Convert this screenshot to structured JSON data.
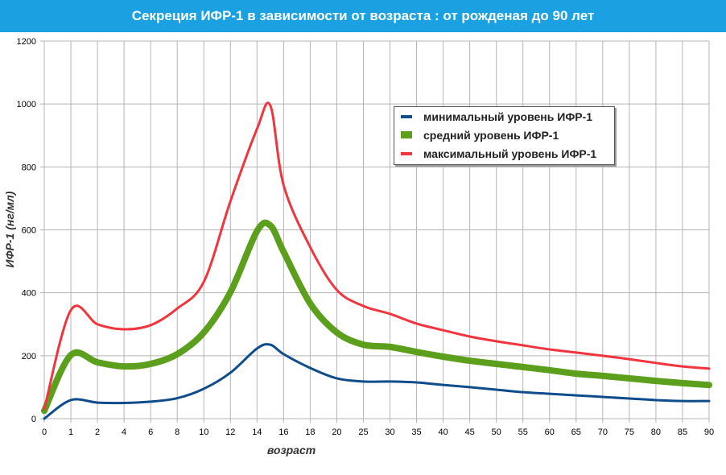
{
  "chart_data": {
    "type": "line",
    "title": "Секреция ИФР-1 в зависимости от возраста : от рожденая до 90 лет",
    "xlabel": "возраст",
    "ylabel": "ИФР-1 (нг/мл)",
    "categories": [
      "0",
      "1",
      "2",
      "4",
      "6",
      "8",
      "10",
      "12",
      "14",
      "16",
      "18",
      "20",
      "25",
      "30",
      "35",
      "40",
      "45",
      "50",
      "55",
      "60",
      "65",
      "70",
      "75",
      "80",
      "85",
      "90"
    ],
    "yticks": [
      "0",
      "200",
      "400",
      "600",
      "800",
      "1000",
      "1200"
    ],
    "ylim": [
      0,
      1200
    ],
    "grid": true,
    "legend_position": "top-right",
    "series": [
      {
        "name": "минимальный уровень ИФР-1",
        "color": "#0e4c8c",
        "width": 3,
        "points": [
          [
            0,
            0
          ],
          [
            1,
            59
          ],
          [
            2,
            51
          ],
          [
            4,
            50
          ],
          [
            6,
            54
          ],
          [
            8,
            65
          ],
          [
            10,
            95
          ],
          [
            12,
            146
          ],
          [
            14,
            223
          ],
          [
            15,
            235
          ],
          [
            16,
            205
          ],
          [
            18,
            161
          ],
          [
            20,
            128
          ],
          [
            25,
            118
          ],
          [
            30,
            118
          ],
          [
            35,
            115
          ],
          [
            40,
            107
          ],
          [
            45,
            100
          ],
          [
            50,
            92
          ],
          [
            55,
            84
          ],
          [
            60,
            79
          ],
          [
            65,
            74
          ],
          [
            70,
            69
          ],
          [
            75,
            64
          ],
          [
            80,
            59
          ],
          [
            85,
            56
          ],
          [
            90,
            56
          ]
        ]
      },
      {
        "name": "средний уровень ИФР-1",
        "color": "#5b9f1c",
        "width": 8,
        "points": [
          [
            0,
            25
          ],
          [
            1,
            202
          ],
          [
            2,
            179
          ],
          [
            4,
            166
          ],
          [
            6,
            174
          ],
          [
            8,
            205
          ],
          [
            10,
            274
          ],
          [
            12,
            402
          ],
          [
            14,
            596
          ],
          [
            15,
            614
          ],
          [
            16,
            530
          ],
          [
            18,
            366
          ],
          [
            20,
            274
          ],
          [
            25,
            235
          ],
          [
            30,
            228
          ],
          [
            35,
            212
          ],
          [
            40,
            197
          ],
          [
            45,
            184
          ],
          [
            50,
            174
          ],
          [
            55,
            164
          ],
          [
            60,
            154
          ],
          [
            65,
            143
          ],
          [
            70,
            136
          ],
          [
            75,
            128
          ],
          [
            80,
            120
          ],
          [
            85,
            113
          ],
          [
            90,
            107
          ]
        ]
      },
      {
        "name": "максимальный уровень ИФР-1",
        "color": "#f2343e",
        "width": 3,
        "points": [
          [
            0,
            30
          ],
          [
            1,
            345
          ],
          [
            2,
            300
          ],
          [
            4,
            284
          ],
          [
            6,
            297
          ],
          [
            8,
            350
          ],
          [
            10,
            435
          ],
          [
            12,
            691
          ],
          [
            14,
            921
          ],
          [
            15,
            995
          ],
          [
            16,
            742
          ],
          [
            18,
            545
          ],
          [
            20,
            409
          ],
          [
            25,
            358
          ],
          [
            30,
            333
          ],
          [
            35,
            302
          ],
          [
            40,
            281
          ],
          [
            45,
            261
          ],
          [
            50,
            246
          ],
          [
            55,
            233
          ],
          [
            60,
            220
          ],
          [
            65,
            210
          ],
          [
            70,
            200
          ],
          [
            75,
            189
          ],
          [
            80,
            177
          ],
          [
            85,
            166
          ],
          [
            90,
            159
          ]
        ]
      }
    ]
  }
}
